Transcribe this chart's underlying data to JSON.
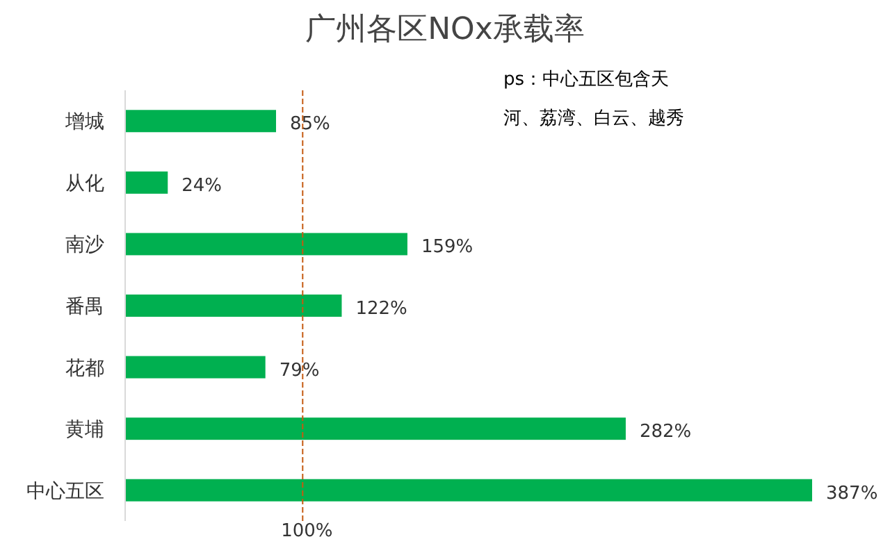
{
  "chart_data": {
    "type": "bar",
    "orientation": "horizontal",
    "title": "广州各区NOx承载率",
    "categories": [
      "增城",
      "从化",
      "南沙",
      "番禺",
      "花都",
      "黄埔",
      "中心五区"
    ],
    "values": [
      85,
      24,
      159,
      122,
      79,
      282,
      387
    ],
    "value_labels": [
      "85%",
      "24%",
      "159%",
      "122%",
      "79%",
      "282%",
      "387%"
    ],
    "color": "#00b050",
    "ref_lines": [
      {
        "axis": "x",
        "value": 100,
        "label": "100%",
        "color": "#c55a11",
        "line_style": "dashed"
      }
    ],
    "annotations": [
      "ps：中心五区包含天河、荔湾、白云、越秀"
    ]
  }
}
